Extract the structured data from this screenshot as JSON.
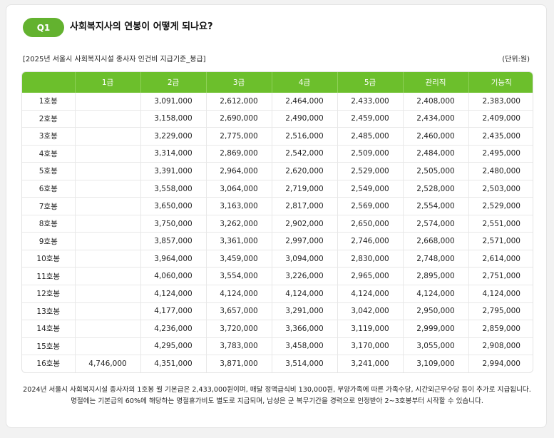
{
  "question": {
    "badge": "Q1",
    "title": "사회복지사의 연봉이 어떻게 되나요?"
  },
  "table_caption": "[2025년 서울시 사회복지시설 종사자 인건비 지급기준_봉급]",
  "unit": "(단위:원)",
  "colors": {
    "accent": "#6cbf2c",
    "badge": "#63b22f"
  },
  "table": {
    "headers": [
      "",
      "1급",
      "2급",
      "3급",
      "4급",
      "5급",
      "관리직",
      "기능직"
    ],
    "rows": [
      [
        "1호봉",
        "",
        "3,091,000",
        "2,612,000",
        "2,464,000",
        "2,433,000",
        "2,408,000",
        "2,383,000"
      ],
      [
        "2호봉",
        "",
        "3,158,000",
        "2,690,000",
        "2,490,000",
        "2,459,000",
        "2,434,000",
        "2,409,000"
      ],
      [
        "3호봉",
        "",
        "3,229,000",
        "2,775,000",
        "2,516,000",
        "2,485,000",
        "2,460,000",
        "2,435,000"
      ],
      [
        "4호봉",
        "",
        "3,314,000",
        "2,869,000",
        "2,542,000",
        "2,509,000",
        "2,484,000",
        "2,495,000"
      ],
      [
        "5호봉",
        "",
        "3,391,000",
        "2,964,000",
        "2,620,000",
        "2,529,000",
        "2,505,000",
        "2,480,000"
      ],
      [
        "6호봉",
        "",
        "3,558,000",
        "3,064,000",
        "2,719,000",
        "2,549,000",
        "2,528,000",
        "2,503,000"
      ],
      [
        "7호봉",
        "",
        "3,650,000",
        "3,163,000",
        "2,817,000",
        "2,569,000",
        "2,554,000",
        "2,529,000"
      ],
      [
        "8호봉",
        "",
        "3,750,000",
        "3,262,000",
        "2,902,000",
        "2,650,000",
        "2,574,000",
        "2,551,000"
      ],
      [
        "9호봉",
        "",
        "3,857,000",
        "3,361,000",
        "2,997,000",
        "2,746,000",
        "2,668,000",
        "2,571,000"
      ],
      [
        "10호봉",
        "",
        "3,964,000",
        "3,459,000",
        "3,094,000",
        "2,830,000",
        "2,748,000",
        "2,614,000"
      ],
      [
        "11호봉",
        "",
        "4,060,000",
        "3,554,000",
        "3,226,000",
        "2,965,000",
        "2,895,000",
        "2,751,000"
      ],
      [
        "12호봉",
        "",
        "4,124,000",
        "4,124,000",
        "4,124,000",
        "4,124,000",
        "4,124,000",
        "4,124,000"
      ],
      [
        "13호봉",
        "",
        "4,177,000",
        "3,657,000",
        "3,291,000",
        "3,042,000",
        "2,950,000",
        "2,795,000"
      ],
      [
        "14호봉",
        "",
        "4,236,000",
        "3,720,000",
        "3,366,000",
        "3,119,000",
        "2,999,000",
        "2,859,000"
      ],
      [
        "15호봉",
        "",
        "4,295,000",
        "3,783,000",
        "3,458,000",
        "3,170,000",
        "3,055,000",
        "2,908,000"
      ],
      [
        "16호봉",
        "4,746,000",
        "4,351,000",
        "3,871,000",
        "3,514,000",
        "3,241,000",
        "3,109,000",
        "2,994,000"
      ]
    ]
  },
  "note": "2024년 서울시 사회복지시설 종사자의 1호봉 월 기본급은 2,433,000원이며, 매달 정액급식비 130,000원, 부양가족에 따른 가족수당, 시간외근무수당 등이 추가로 지급됩니다. 명절에는 기본급의 60%에 해당하는 명절휴가비도 별도로 지급되며, 남성은 군 복무기간을 경력으로 인정받아 2~3호봉부터 시작할 수 있습니다."
}
